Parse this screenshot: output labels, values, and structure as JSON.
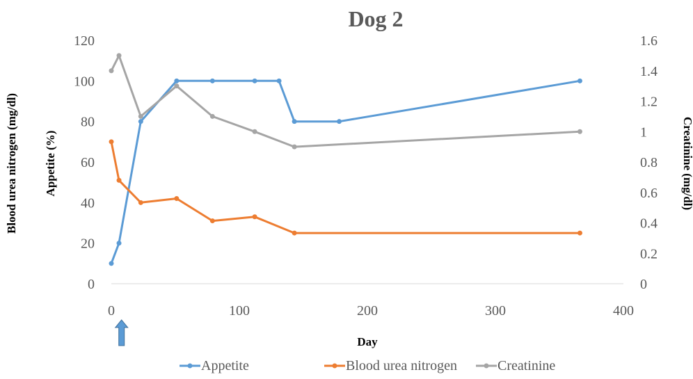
{
  "chart_data": {
    "type": "line",
    "title": "Dog 2",
    "xlabel": "Day",
    "ylabel_left_outer": "Blood urea nitrogen (mg/dl)",
    "ylabel_left_inner": "Appetite (%)",
    "ylabel_right": "Creatinine (mg/dl)",
    "xlim": [
      0,
      400
    ],
    "ylim_left": [
      0,
      120
    ],
    "ylim_right": [
      0,
      1.6
    ],
    "x_ticks": [
      "0",
      "100",
      "200",
      "300",
      "400"
    ],
    "y_left_ticks": [
      "0",
      "20",
      "40",
      "60",
      "80",
      "100",
      "120"
    ],
    "y_right_ticks": [
      "0",
      "0.2",
      "0.4",
      "0.6",
      "0.8",
      "1",
      "1.2",
      "1.4",
      "1.6"
    ],
    "grid": false,
    "legend_position": "bottom",
    "arrow_marker_day": 8,
    "series": [
      {
        "name": "Appetite",
        "axis": "left",
        "color": "#5B9BD5",
        "points": [
          [
            0,
            10
          ],
          [
            6,
            20
          ],
          [
            23,
            80
          ],
          [
            51,
            100
          ],
          [
            79,
            100
          ],
          [
            112,
            100
          ],
          [
            131,
            100
          ],
          [
            143,
            80
          ],
          [
            178,
            80
          ],
          [
            366,
            100
          ]
        ]
      },
      {
        "name": "Blood urea nitrogen",
        "axis": "left",
        "color": "#ED7D31",
        "points": [
          [
            0,
            70
          ],
          [
            6,
            51
          ],
          [
            23,
            40
          ],
          [
            51,
            42
          ],
          [
            79,
            31
          ],
          [
            112,
            33
          ],
          [
            143,
            25
          ],
          [
            366,
            25
          ]
        ]
      },
      {
        "name": "Creatinine",
        "axis": "right",
        "color": "#A5A5A5",
        "points": [
          [
            0,
            1.4
          ],
          [
            6,
            1.5
          ],
          [
            23,
            1.1
          ],
          [
            51,
            1.3
          ],
          [
            79,
            1.1
          ],
          [
            112,
            1.0
          ],
          [
            143,
            0.9
          ],
          [
            366,
            1.0
          ]
        ]
      }
    ]
  }
}
